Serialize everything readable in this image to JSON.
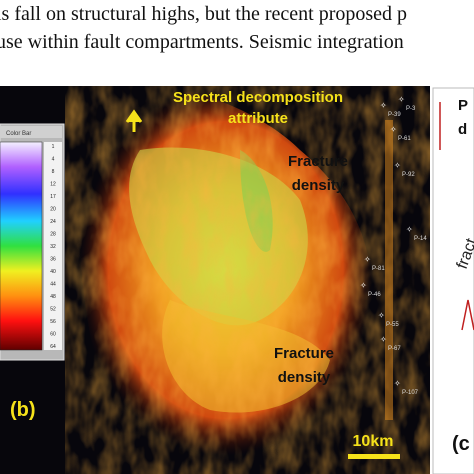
{
  "body_text": {
    "lines": [
      "ls fall on structural highs, but the recent proposed p",
      "use within fault compartments. Seismic integration"
    ]
  },
  "figure": {
    "panel_b": {
      "label": "(b)",
      "title_line1": "Spectral decomposition",
      "title_line2": "attribute",
      "annotation_1": {
        "line1": "Fracture",
        "line2": "density"
      },
      "annotation_2": {
        "line1": "Fracture",
        "line2": "density"
      },
      "scale_bar": "10km",
      "color_bar": {
        "title": "Color Bar",
        "ticks": [
          "1",
          "4",
          "8",
          "12",
          "17",
          "20",
          "24",
          "28",
          "32",
          "36",
          "40",
          "44",
          "48",
          "52",
          "56",
          "60",
          "64"
        ]
      },
      "wells": [
        "P-61",
        "P-92",
        "P-39",
        "P-81",
        "P-67",
        "P-107",
        "P-55",
        "P-46",
        "P-14",
        "P-3"
      ]
    },
    "panel_c": {
      "label": "(c",
      "title_line1": "P",
      "title_line2": "d",
      "axis_text": "fract"
    }
  }
}
